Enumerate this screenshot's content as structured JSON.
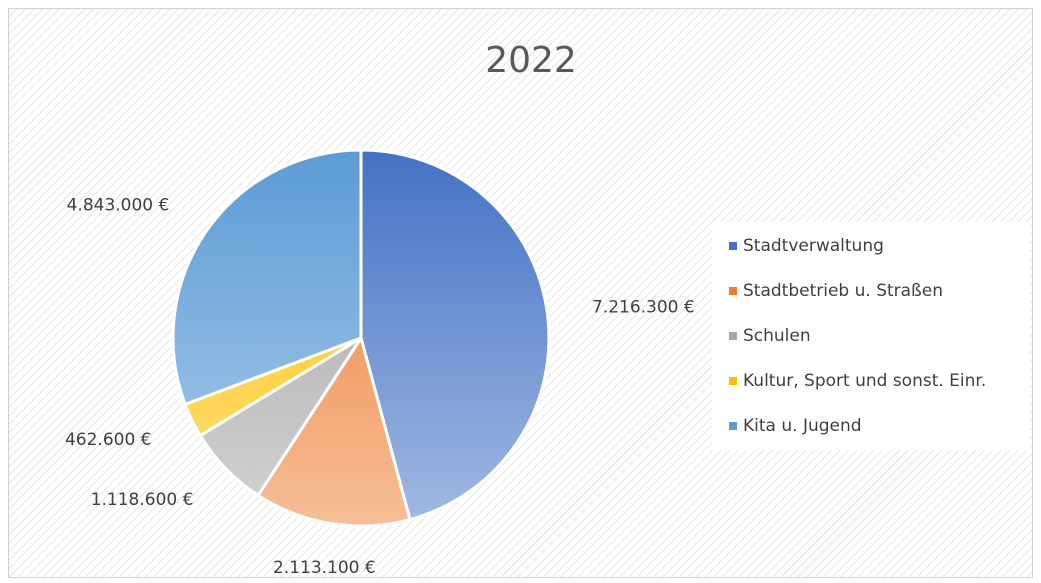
{
  "chart_data": {
    "type": "pie",
    "title": "2022",
    "categories": [
      "Stadtverwaltung",
      "Stadtbetrieb u. Straßen",
      "Schulen",
      "Kultur, Sport und sonst. Einr.",
      "Kita u. Jugend"
    ],
    "values": [
      7216300,
      2113100,
      1118600,
      462600,
      4843000
    ],
    "value_labels": [
      "7.216.300 €",
      "2.113.100 €",
      "1.118.600 €",
      "462.600 €",
      "4.843.000 €"
    ],
    "colors": [
      "#4472c4",
      "#ed7d31",
      "#a5a5a5",
      "#ffc000",
      "#5b9bd5"
    ],
    "legend": "right"
  }
}
